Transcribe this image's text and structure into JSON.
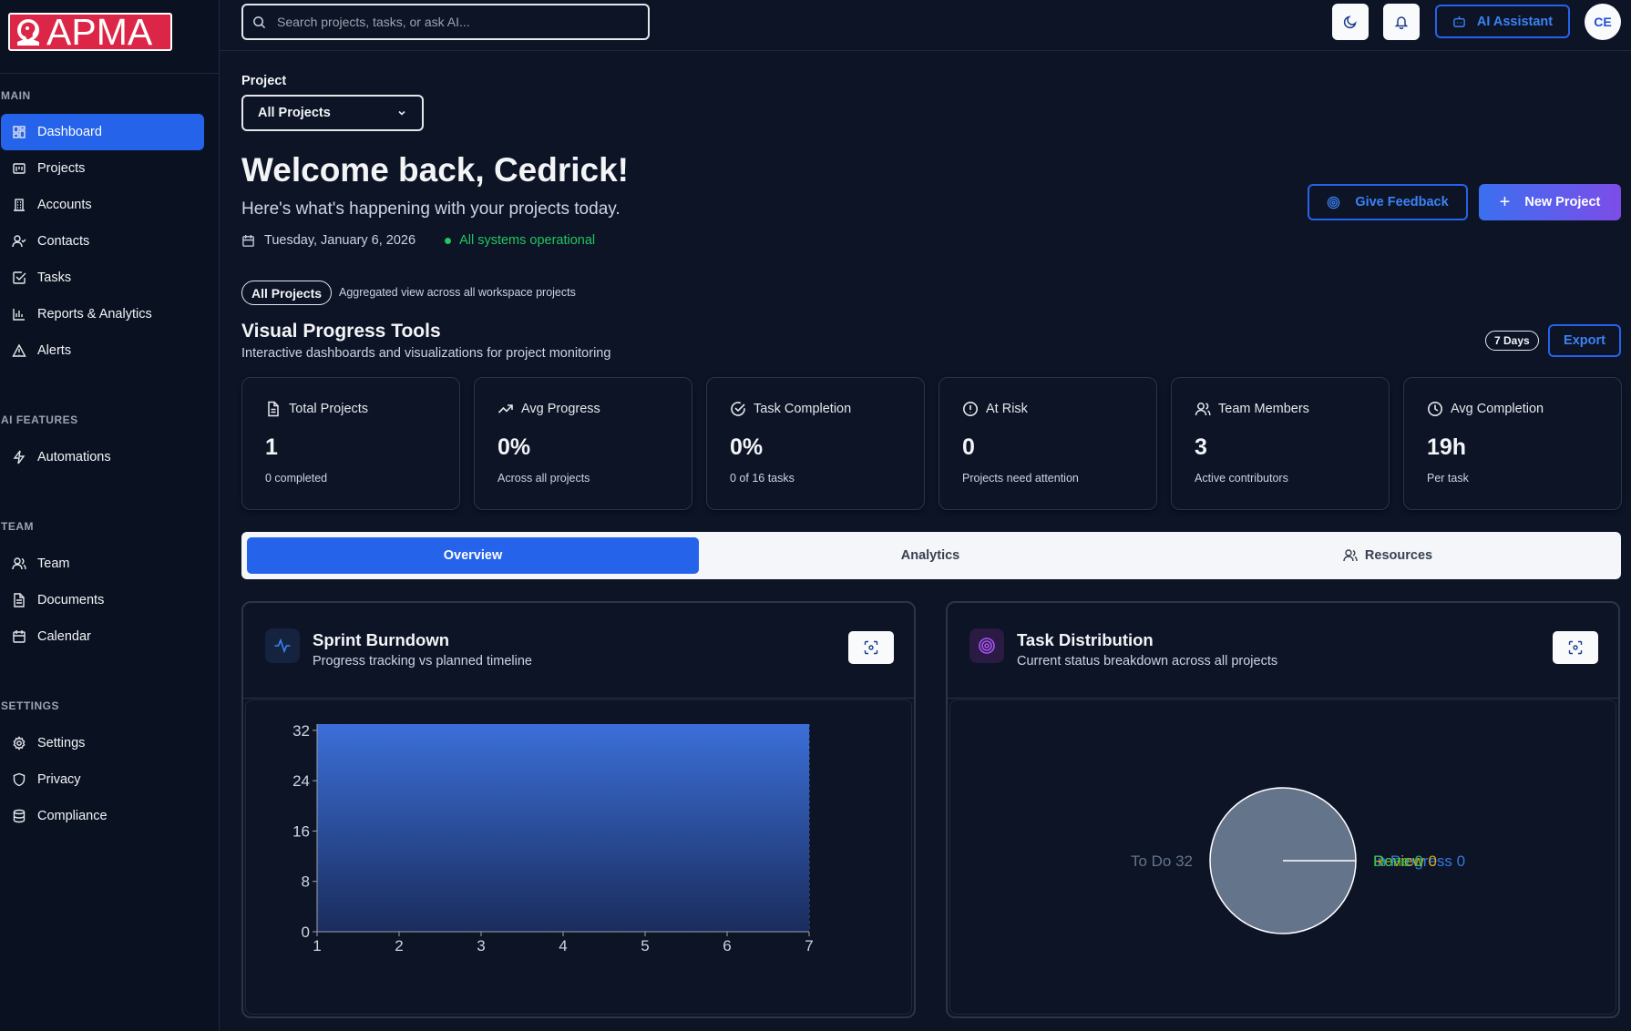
{
  "app": {
    "logo_text": "APMA"
  },
  "sidebar": {
    "sections": [
      {
        "label": "MAIN"
      },
      {
        "label": "AI FEATURES"
      },
      {
        "label": "TEAM"
      },
      {
        "label": "SETTINGS"
      }
    ],
    "items": [
      {
        "label": "Dashboard",
        "icon": "layout-grid-icon",
        "active": true
      },
      {
        "label": "Projects",
        "icon": "projects-icon"
      },
      {
        "label": "Accounts",
        "icon": "building-icon"
      },
      {
        "label": "Contacts",
        "icon": "contacts-icon"
      },
      {
        "label": "Tasks",
        "icon": "check-square-icon"
      },
      {
        "label": "Reports & Analytics",
        "icon": "bar-chart-icon"
      },
      {
        "label": "Alerts",
        "icon": "alert-triangle-icon"
      },
      {
        "label": "Automations",
        "icon": "zap-icon"
      },
      {
        "label": "Team",
        "icon": "users-icon"
      },
      {
        "label": "Documents",
        "icon": "file-text-icon"
      },
      {
        "label": "Calendar",
        "icon": "calendar-icon"
      },
      {
        "label": "Settings",
        "icon": "gear-icon"
      },
      {
        "label": "Privacy",
        "icon": "shield-icon"
      },
      {
        "label": "Compliance",
        "icon": "database-icon"
      }
    ]
  },
  "topbar": {
    "search_placeholder": "Search projects, tasks, or ask AI...",
    "ai_assistant_label": "AI Assistant",
    "avatar_initials": "CE"
  },
  "main": {
    "project_label": "Project",
    "project_selected": "All Projects",
    "welcome": "Welcome back, Cedrick!",
    "subtitle": "Here's what's happening with your projects today.",
    "date": "Tuesday, January 6, 2026",
    "status": "All systems operational",
    "give_feedback_label": "Give Feedback",
    "new_project_label": "New Project",
    "pill_label": "All Projects",
    "pill_desc": "Aggregated view across all workspace projects",
    "vpt_title": "Visual Progress Tools",
    "vpt_sub": "Interactive dashboards and visualizations for project monitoring",
    "days_label": "7 Days",
    "export_label": "Export"
  },
  "stats": [
    {
      "title": "Total Projects",
      "value": "1",
      "sub": "0 completed",
      "icon": "file-icon"
    },
    {
      "title": "Avg Progress",
      "value": "0%",
      "sub": "Across all projects",
      "icon": "trending-up-icon"
    },
    {
      "title": "Task Completion",
      "value": "0%",
      "sub": "0 of 16 tasks",
      "icon": "check-circle-icon"
    },
    {
      "title": "At Risk",
      "value": "0",
      "sub": "Projects need attention",
      "icon": "alert-circle-icon"
    },
    {
      "title": "Team Members",
      "value": "3",
      "sub": "Active contributors",
      "icon": "users-icon"
    },
    {
      "title": "Avg Completion",
      "value": "19h",
      "sub": "Per task",
      "icon": "clock-icon"
    }
  ],
  "tabs": [
    {
      "label": "Overview",
      "active": true
    },
    {
      "label": "Analytics"
    },
    {
      "label": "Resources",
      "icon": "users-icon"
    }
  ],
  "burndown": {
    "title": "Sprint Burndown",
    "sub": "Progress tracking vs planned timeline"
  },
  "distribution": {
    "title": "Task Distribution",
    "sub": "Current status breakdown across all projects"
  },
  "chart_data": [
    {
      "type": "area",
      "x": [
        1,
        2,
        3,
        4,
        5,
        6,
        7
      ],
      "y_ticks": [
        0,
        8,
        16,
        24,
        32
      ],
      "series": [
        {
          "values": [
            33,
            33,
            33,
            33,
            33,
            33,
            33
          ]
        }
      ],
      "ylim": [
        0,
        33
      ],
      "xlim": [
        1,
        7
      ],
      "grid": true,
      "colors": {
        "fill_top": "#3b6fd8",
        "fill_bottom": "#1a2c5c"
      }
    },
    {
      "type": "pie",
      "slices": [
        {
          "label": "To Do 32",
          "value": 32,
          "color": "#64748b"
        },
        {
          "label": "In Progress 0",
          "value": 0,
          "color": "#3b82f6"
        },
        {
          "label": "Review 0",
          "value": 0,
          "color": "#eab308"
        },
        {
          "label": "Done 0",
          "value": 0,
          "color": "#22c55e"
        }
      ]
    }
  ]
}
